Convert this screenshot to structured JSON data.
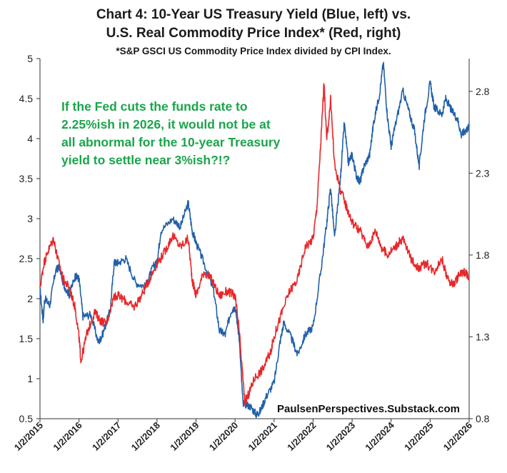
{
  "chart_data": {
    "type": "line",
    "title": "Chart 4: 10-Year US Treasury Yield (Blue, left) vs.",
    "subtitle": "U.S. Real Commodity Price Index* (Red, right)",
    "footnote": "*S&P GSCI US Commodity Price Index divided by CPI Index.",
    "annotation": [
      "If the Fed cuts the funds rate to",
      "2.25%ish in 2026, it would not be at",
      "all abnormal for the 10-year Treasury",
      "yield to settle near 3%ish?!?"
    ],
    "source": "PaulsenPerspectives.Substack.com",
    "x_tick_labels": [
      "1/2/2015",
      "1/2/2016",
      "1/2/2017",
      "1/2/2018",
      "1/2/2019",
      "1/2/2020",
      "1/2/2021",
      "1/2/2022",
      "1/2/2023",
      "1/2/2024",
      "1/2/2025",
      "1/2/2026"
    ],
    "y_left": {
      "range": [
        0.5,
        5
      ],
      "ticks": [
        "0.5",
        "1",
        "1.5",
        "2",
        "2.5",
        "3",
        "3.5",
        "4",
        "4.5",
        "5"
      ]
    },
    "y_right": {
      "range": [
        0.8,
        3.0
      ],
      "ticks": [
        "0.8",
        "1.3",
        "1.8",
        "2.3",
        "2.8"
      ]
    },
    "grid": false,
    "series": [
      {
        "color": "#2060a8",
        "axis": "left",
        "points": [
          [
            2015.0,
            2.12
          ],
          [
            2015.08,
            1.72
          ],
          [
            2015.12,
            2.0
          ],
          [
            2015.25,
            1.92
          ],
          [
            2015.4,
            2.35
          ],
          [
            2015.5,
            2.4
          ],
          [
            2015.6,
            2.18
          ],
          [
            2015.75,
            2.05
          ],
          [
            2015.9,
            2.28
          ],
          [
            2016.0,
            2.25
          ],
          [
            2016.1,
            1.78
          ],
          [
            2016.3,
            1.8
          ],
          [
            2016.5,
            1.45
          ],
          [
            2016.6,
            1.55
          ],
          [
            2016.8,
            1.85
          ],
          [
            2016.9,
            2.45
          ],
          [
            2017.0,
            2.45
          ],
          [
            2017.2,
            2.5
          ],
          [
            2017.45,
            2.2
          ],
          [
            2017.7,
            2.15
          ],
          [
            2017.9,
            2.4
          ],
          [
            2018.0,
            2.45
          ],
          [
            2018.1,
            2.85
          ],
          [
            2018.4,
            3.0
          ],
          [
            2018.6,
            2.9
          ],
          [
            2018.8,
            3.2
          ],
          [
            2018.9,
            2.85
          ],
          [
            2019.0,
            2.7
          ],
          [
            2019.2,
            2.45
          ],
          [
            2019.45,
            2.1
          ],
          [
            2019.6,
            1.6
          ],
          [
            2019.75,
            1.55
          ],
          [
            2019.9,
            1.85
          ],
          [
            2020.0,
            1.9
          ],
          [
            2020.1,
            1.55
          ],
          [
            2020.2,
            0.7
          ],
          [
            2020.4,
            0.65
          ],
          [
            2020.55,
            0.55
          ],
          [
            2020.65,
            0.6
          ],
          [
            2020.8,
            0.78
          ],
          [
            2021.0,
            0.95
          ],
          [
            2021.15,
            1.45
          ],
          [
            2021.25,
            1.7
          ],
          [
            2021.45,
            1.5
          ],
          [
            2021.6,
            1.3
          ],
          [
            2021.8,
            1.55
          ],
          [
            2022.0,
            1.65
          ],
          [
            2022.2,
            2.35
          ],
          [
            2022.35,
            2.95
          ],
          [
            2022.45,
            3.4
          ],
          [
            2022.55,
            2.75
          ],
          [
            2022.7,
            3.5
          ],
          [
            2022.8,
            4.2
          ],
          [
            2022.9,
            3.7
          ],
          [
            2023.0,
            3.8
          ],
          [
            2023.1,
            3.55
          ],
          [
            2023.2,
            3.45
          ],
          [
            2023.3,
            3.65
          ],
          [
            2023.45,
            3.8
          ],
          [
            2023.55,
            4.2
          ],
          [
            2023.7,
            4.55
          ],
          [
            2023.8,
            4.95
          ],
          [
            2023.9,
            4.3
          ],
          [
            2024.0,
            3.9
          ],
          [
            2024.1,
            4.15
          ],
          [
            2024.3,
            4.6
          ],
          [
            2024.45,
            4.35
          ],
          [
            2024.6,
            4.1
          ],
          [
            2024.72,
            3.65
          ],
          [
            2024.85,
            4.25
          ],
          [
            2025.0,
            4.7
          ],
          [
            2025.1,
            4.4
          ],
          [
            2025.3,
            4.3
          ],
          [
            2025.4,
            4.5
          ],
          [
            2025.55,
            4.35
          ],
          [
            2025.7,
            4.25
          ],
          [
            2025.8,
            4.05
          ],
          [
            2025.9,
            4.1
          ],
          [
            2026.0,
            4.15
          ]
        ]
      },
      {
        "color": "#e8272a",
        "axis": "right",
        "points": [
          [
            2015.0,
            1.6
          ],
          [
            2015.1,
            1.75
          ],
          [
            2015.2,
            1.82
          ],
          [
            2015.35,
            1.9
          ],
          [
            2015.45,
            1.78
          ],
          [
            2015.6,
            1.65
          ],
          [
            2015.75,
            1.6
          ],
          [
            2015.9,
            1.48
          ],
          [
            2016.0,
            1.3
          ],
          [
            2016.05,
            1.15
          ],
          [
            2016.2,
            1.32
          ],
          [
            2016.4,
            1.45
          ],
          [
            2016.55,
            1.4
          ],
          [
            2016.7,
            1.38
          ],
          [
            2016.9,
            1.55
          ],
          [
            2017.0,
            1.55
          ],
          [
            2017.2,
            1.52
          ],
          [
            2017.4,
            1.48
          ],
          [
            2017.6,
            1.55
          ],
          [
            2017.8,
            1.65
          ],
          [
            2018.0,
            1.75
          ],
          [
            2018.2,
            1.82
          ],
          [
            2018.4,
            1.92
          ],
          [
            2018.6,
            1.85
          ],
          [
            2018.8,
            1.9
          ],
          [
            2018.9,
            1.65
          ],
          [
            2019.0,
            1.55
          ],
          [
            2019.2,
            1.7
          ],
          [
            2019.4,
            1.65
          ],
          [
            2019.6,
            1.55
          ],
          [
            2019.8,
            1.58
          ],
          [
            2020.0,
            1.55
          ],
          [
            2020.1,
            1.35
          ],
          [
            2020.25,
            0.9
          ],
          [
            2020.35,
            0.95
          ],
          [
            2020.5,
            1.05
          ],
          [
            2020.7,
            1.1
          ],
          [
            2020.9,
            1.2
          ],
          [
            2021.0,
            1.3
          ],
          [
            2021.2,
            1.45
          ],
          [
            2021.4,
            1.58
          ],
          [
            2021.6,
            1.65
          ],
          [
            2021.8,
            1.85
          ],
          [
            2022.0,
            1.9
          ],
          [
            2022.1,
            2.1
          ],
          [
            2022.2,
            2.5
          ],
          [
            2022.28,
            2.85
          ],
          [
            2022.35,
            2.5
          ],
          [
            2022.45,
            2.75
          ],
          [
            2022.55,
            2.35
          ],
          [
            2022.7,
            2.2
          ],
          [
            2022.85,
            2.1
          ],
          [
            2023.0,
            2.0
          ],
          [
            2023.2,
            1.95
          ],
          [
            2023.4,
            1.85
          ],
          [
            2023.6,
            1.95
          ],
          [
            2023.75,
            1.85
          ],
          [
            2023.9,
            1.8
          ],
          [
            2024.1,
            1.85
          ],
          [
            2024.3,
            1.9
          ],
          [
            2024.5,
            1.78
          ],
          [
            2024.7,
            1.72
          ],
          [
            2024.9,
            1.75
          ],
          [
            2025.1,
            1.7
          ],
          [
            2025.3,
            1.78
          ],
          [
            2025.45,
            1.65
          ],
          [
            2025.6,
            1.62
          ],
          [
            2025.75,
            1.68
          ],
          [
            2025.9,
            1.7
          ],
          [
            2026.0,
            1.65
          ]
        ]
      }
    ]
  }
}
